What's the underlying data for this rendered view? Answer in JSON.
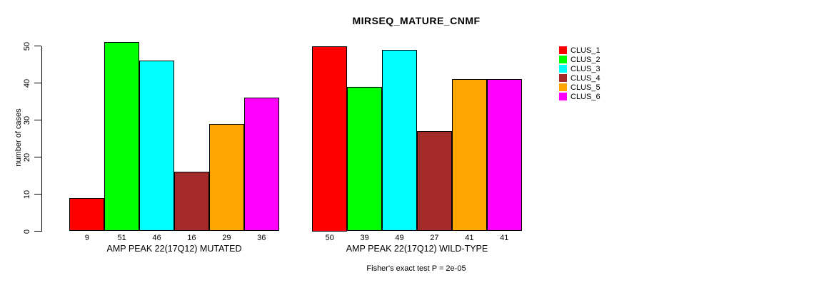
{
  "chart_data": {
    "type": "bar",
    "title": "MIRSEQ_MATURE_CNMF",
    "ylabel": "number of cases",
    "xlabel": "",
    "ylim": [
      0,
      50
    ],
    "yticks": [
      0,
      10,
      20,
      30,
      40,
      50
    ],
    "grid": false,
    "legend_position": "right",
    "bar_value_labels": true,
    "series": [
      {
        "name": "CLUS_1",
        "color": "#FF0000"
      },
      {
        "name": "CLUS_2",
        "color": "#00FF00"
      },
      {
        "name": "CLUS_3",
        "color": "#00FFFF"
      },
      {
        "name": "CLUS_4",
        "color": "#A52A2A"
      },
      {
        "name": "CLUS_5",
        "color": "#FFA500"
      },
      {
        "name": "CLUS_6",
        "color": "#FF00FF"
      }
    ],
    "groups": [
      {
        "label": "AMP PEAK 22(17Q12) MUTATED",
        "values": [
          9,
          51,
          46,
          16,
          29,
          36
        ]
      },
      {
        "label": "AMP PEAK 22(17Q12) WILD-TYPE",
        "values": [
          50,
          39,
          49,
          27,
          41,
          41
        ]
      }
    ],
    "annotation": "Fisher's exact test P = 2e-05"
  }
}
